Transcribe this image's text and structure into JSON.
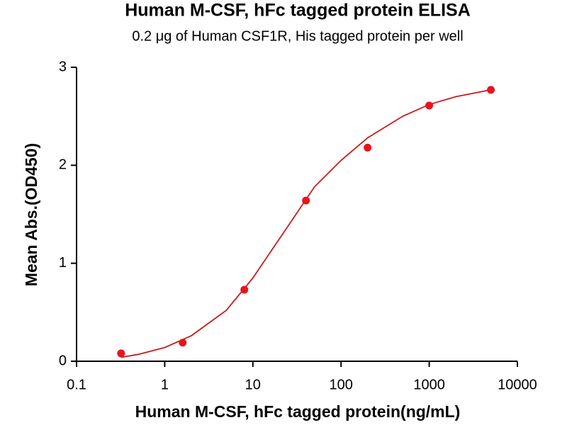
{
  "chart_data": {
    "type": "scatter",
    "title": "Human M-CSF, hFc tagged protein ELISA",
    "subtitle": "0.2 μg of Human CSF1R, His tagged protein per well",
    "x_label": "Human M-CSF, hFc tagged protein(ng/mL)",
    "y_label": "Mean Abs.(OD450)",
    "xscale": "log",
    "xlim": [
      0.1,
      10000
    ],
    "xticks": [
      0.1,
      1,
      10,
      100,
      1000,
      10000
    ],
    "ylim": [
      0,
      3
    ],
    "yticks": [
      0,
      1,
      2,
      3
    ],
    "series": [
      {
        "color": "#e8141c",
        "x": [
          0.32,
          1.6,
          8,
          40,
          200,
          1000,
          5000
        ],
        "values": [
          0.08,
          0.19,
          0.73,
          1.64,
          2.18,
          2.61,
          2.77
        ]
      }
    ],
    "fit": {
      "color": "#cc1a1a",
      "x": [
        0.32,
        0.5,
        1,
        2,
        5,
        10,
        20,
        50,
        100,
        200,
        500,
        1000,
        2000,
        5000
      ],
      "values": [
        0.04,
        0.07,
        0.14,
        0.26,
        0.52,
        0.85,
        1.25,
        1.78,
        2.05,
        2.28,
        2.5,
        2.62,
        2.7,
        2.77
      ]
    }
  }
}
